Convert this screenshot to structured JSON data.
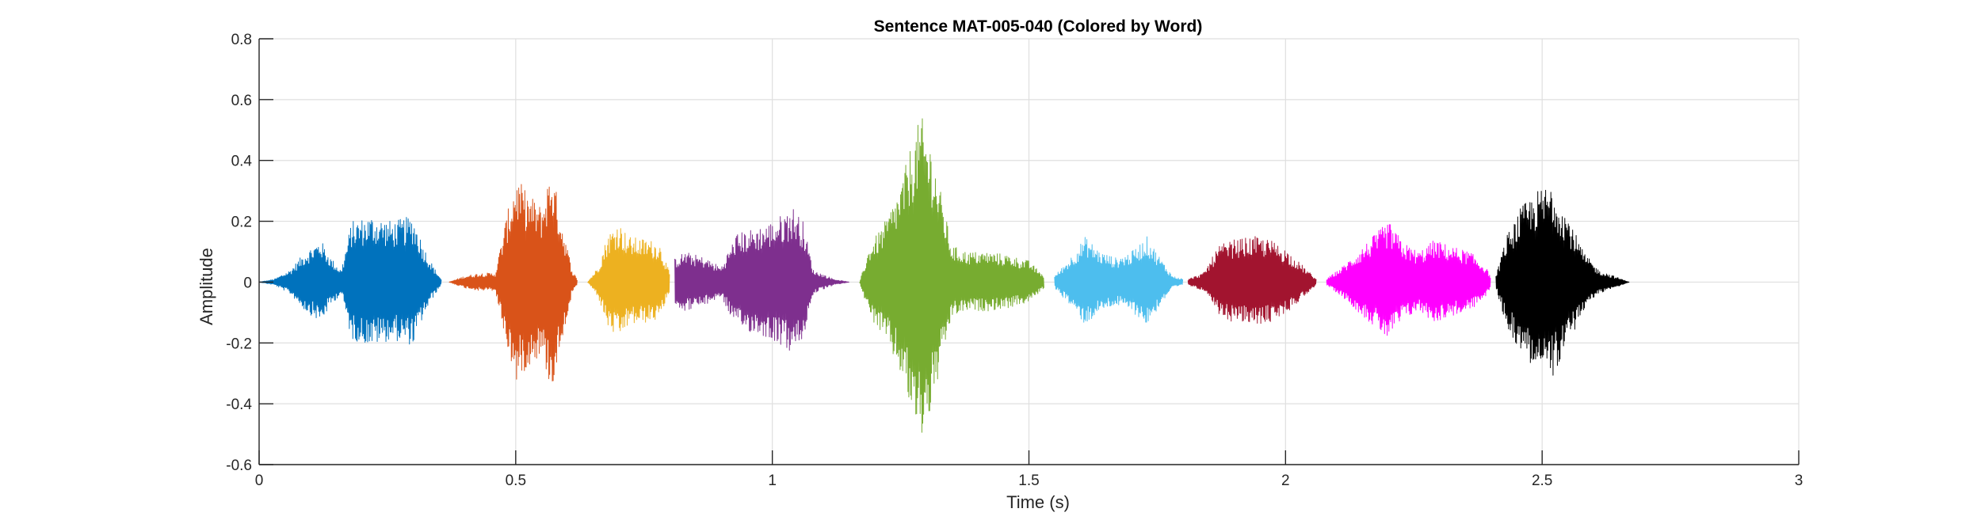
{
  "chart_data": {
    "type": "line",
    "title": "Sentence MAT-005-040 (Colored by Word)",
    "xlabel": "Time (s)",
    "ylabel": "Amplitude",
    "xlim": [
      0,
      3
    ],
    "ylim": [
      -0.6,
      0.8
    ],
    "xticks": [
      0,
      0.5,
      1,
      1.5,
      2,
      2.5,
      3
    ],
    "xtick_labels": [
      "0",
      "0.5",
      "1",
      "1.5",
      "2",
      "2.5",
      "3"
    ],
    "yticks": [
      -0.6,
      -0.4,
      -0.2,
      0,
      0.2,
      0.4,
      0.6,
      0.8
    ],
    "ytick_labels": [
      "-0.6",
      "-0.4",
      "-0.2",
      "0",
      "0.2",
      "0.4",
      "0.6",
      "0.8"
    ],
    "grid": true,
    "legend": "none",
    "series": [
      {
        "color": "#0072BD",
        "t_start": 0.0,
        "t_end": 0.355,
        "envelope": [
          [
            0.0,
            0.0
          ],
          [
            0.03,
            0.01
          ],
          [
            0.06,
            0.04
          ],
          [
            0.09,
            0.1
          ],
          [
            0.12,
            0.14
          ],
          [
            0.14,
            0.08
          ],
          [
            0.16,
            0.04
          ],
          [
            0.18,
            0.2
          ],
          [
            0.22,
            0.22
          ],
          [
            0.26,
            0.2
          ],
          [
            0.3,
            0.22
          ],
          [
            0.32,
            0.12
          ],
          [
            0.34,
            0.05
          ],
          [
            0.355,
            0.01
          ]
        ]
      },
      {
        "color": "#D95319",
        "t_start": 0.37,
        "t_end": 0.62,
        "envelope": [
          [
            0.37,
            0.0
          ],
          [
            0.4,
            0.02
          ],
          [
            0.43,
            0.03
          ],
          [
            0.46,
            0.03
          ],
          [
            0.48,
            0.2
          ],
          [
            0.5,
            0.35
          ],
          [
            0.52,
            0.3
          ],
          [
            0.55,
            0.25
          ],
          [
            0.57,
            0.38
          ],
          [
            0.59,
            0.2
          ],
          [
            0.61,
            0.04
          ],
          [
            0.62,
            0.01
          ]
        ]
      },
      {
        "color": "#EDB120",
        "t_start": 0.64,
        "t_end": 0.8,
        "envelope": [
          [
            0.64,
            0.0
          ],
          [
            0.66,
            0.05
          ],
          [
            0.68,
            0.16
          ],
          [
            0.7,
            0.2
          ],
          [
            0.72,
            0.15
          ],
          [
            0.76,
            0.14
          ],
          [
            0.78,
            0.13
          ],
          [
            0.8,
            0.03
          ]
        ]
      },
      {
        "color": "#7E2F8E",
        "t_start": 0.81,
        "t_end": 1.15,
        "envelope": [
          [
            0.81,
            0.08
          ],
          [
            0.83,
            0.1
          ],
          [
            0.87,
            0.08
          ],
          [
            0.9,
            0.05
          ],
          [
            0.93,
            0.16
          ],
          [
            0.97,
            0.18
          ],
          [
            1.0,
            0.2
          ],
          [
            1.04,
            0.25
          ],
          [
            1.06,
            0.2
          ],
          [
            1.08,
            0.04
          ],
          [
            1.12,
            0.01
          ],
          [
            1.15,
            0.0
          ]
        ]
      },
      {
        "color": "#77AC30",
        "t_start": 1.17,
        "t_end": 1.53,
        "envelope": [
          [
            1.17,
            0.0
          ],
          [
            1.19,
            0.12
          ],
          [
            1.22,
            0.2
          ],
          [
            1.25,
            0.32
          ],
          [
            1.27,
            0.45
          ],
          [
            1.29,
            0.55
          ],
          [
            1.31,
            0.45
          ],
          [
            1.33,
            0.28
          ],
          [
            1.35,
            0.12
          ],
          [
            1.38,
            0.1
          ],
          [
            1.42,
            0.1
          ],
          [
            1.46,
            0.09
          ],
          [
            1.5,
            0.07
          ],
          [
            1.53,
            0.02
          ]
        ]
      },
      {
        "color": "#4DBEEE",
        "t_start": 1.55,
        "t_end": 1.8,
        "envelope": [
          [
            1.55,
            0.02
          ],
          [
            1.58,
            0.08
          ],
          [
            1.61,
            0.15
          ],
          [
            1.64,
            0.1
          ],
          [
            1.67,
            0.08
          ],
          [
            1.7,
            0.1
          ],
          [
            1.73,
            0.15
          ],
          [
            1.76,
            0.07
          ],
          [
            1.78,
            0.02
          ],
          [
            1.8,
            0.01
          ]
        ]
      },
      {
        "color": "#A2142F",
        "t_start": 1.81,
        "t_end": 2.06,
        "envelope": [
          [
            1.81,
            0.01
          ],
          [
            1.84,
            0.03
          ],
          [
            1.87,
            0.12
          ],
          [
            1.9,
            0.14
          ],
          [
            1.94,
            0.15
          ],
          [
            1.97,
            0.14
          ],
          [
            2.0,
            0.11
          ],
          [
            2.03,
            0.06
          ],
          [
            2.06,
            0.01
          ]
        ]
      },
      {
        "color": "#FF00FF",
        "t_start": 2.08,
        "t_end": 2.4,
        "envelope": [
          [
            2.08,
            0.01
          ],
          [
            2.11,
            0.05
          ],
          [
            2.14,
            0.1
          ],
          [
            2.17,
            0.15
          ],
          [
            2.2,
            0.2
          ],
          [
            2.23,
            0.13
          ],
          [
            2.26,
            0.1
          ],
          [
            2.29,
            0.14
          ],
          [
            2.32,
            0.12
          ],
          [
            2.36,
            0.1
          ],
          [
            2.39,
            0.05
          ],
          [
            2.4,
            0.02
          ]
        ]
      },
      {
        "color": "#000000",
        "t_start": 2.41,
        "t_end": 2.67,
        "envelope": [
          [
            2.41,
            0.02
          ],
          [
            2.43,
            0.15
          ],
          [
            2.46,
            0.25
          ],
          [
            2.49,
            0.3
          ],
          [
            2.52,
            0.33
          ],
          [
            2.55,
            0.22
          ],
          [
            2.58,
            0.1
          ],
          [
            2.61,
            0.04
          ],
          [
            2.64,
            0.02
          ],
          [
            2.67,
            0.0
          ]
        ]
      }
    ]
  }
}
